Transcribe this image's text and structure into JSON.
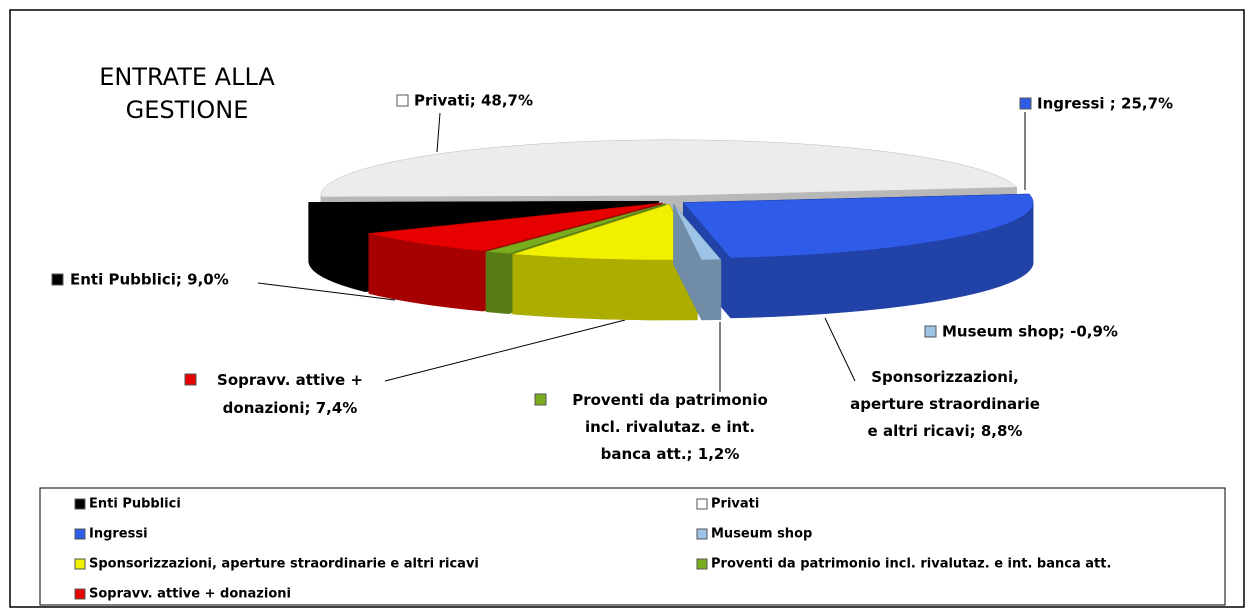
{
  "chart_data": {
    "type": "pie3d",
    "title": "ENTRATE ALLA GESTIONE",
    "categories": [
      "Enti Pubblici",
      "Privati",
      "Ingressi",
      "Museum shop",
      "Sponsorizzazioni, aperture straordinarie e altri ricavi",
      "Proventi da patrimonio incl. rivalutaz. e int. banca att.",
      "Sopravv. attive + donazioni"
    ],
    "values": [
      9.0,
      48.7,
      25.7,
      -0.9,
      8.8,
      1.2,
      7.4
    ],
    "value_labels": [
      "Enti Pubblici; 9,0%",
      "Privati; 48,7%",
      "Ingressi ; 25,7%",
      "Museum shop; -0,9%",
      "Sponsorizzazioni, aperture straordinarie e altri ricavi; 8,8%",
      "Proventi da patrimonio incl. rivalutaz. e int. banca att.; 1,2%",
      "Sopravv. attive + donazioni; 7,4%"
    ],
    "colors": [
      "#000000",
      "#ffffff",
      "#2e5be8",
      "#9dc3e6",
      "#f0f000",
      "#7aad1e",
      "#e60000"
    ],
    "legend": "bottom"
  }
}
